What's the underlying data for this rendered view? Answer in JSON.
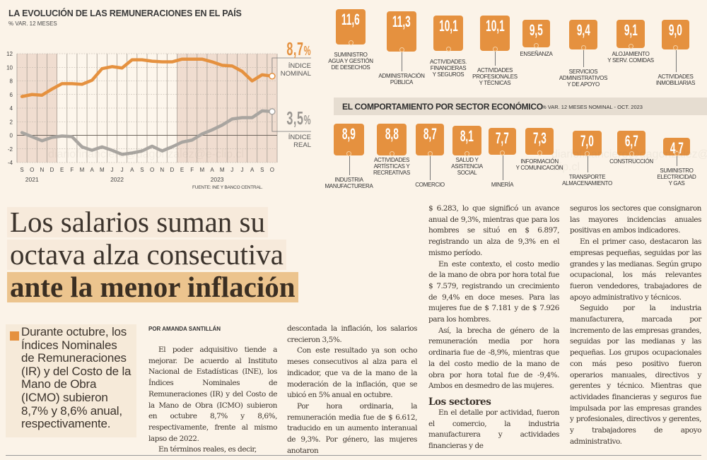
{
  "chart": {
    "title": "LA EVOLUCIÓN DE LAS REMUNERACIONES EN EL PAÍS",
    "subtitle": "% VAR. 12 MESES",
    "source": "FUENTE: INE Y BANCO CENTRAL.",
    "nominal_callout": {
      "value": "8,7",
      "unit": "%",
      "label_line1": "ÍNDICE",
      "label_line2": "NOMINAL"
    },
    "real_callout": {
      "value": "3,5",
      "unit": "%",
      "label_line1": "ÍNDICE",
      "label_line2": "REAL"
    },
    "watermark": "diariofinanciero@dagonzalez@e-clip.cl"
  },
  "chart_data": {
    "type": "line",
    "title": "LA EVOLUCIÓN DE LAS REMUNERACIONES EN EL PAÍS",
    "subtitle": "% VAR. 12 MESES",
    "xlabel": "",
    "ylabel": "% VAR. 12 MESES",
    "ylim": [
      -4,
      12
    ],
    "yticks": [
      12,
      10,
      8,
      6,
      4,
      2,
      0,
      -2,
      -4
    ],
    "grid": true,
    "x": [
      "S",
      "O",
      "N",
      "D",
      "E",
      "F",
      "M",
      "A",
      "M",
      "J",
      "J",
      "A",
      "S",
      "O",
      "N",
      "D",
      "E",
      "F",
      "M",
      "A",
      "M",
      "J",
      "J",
      "A",
      "S",
      "O"
    ],
    "year_labels": [
      {
        "label": "2021",
        "at": 1
      },
      {
        "label": "2022",
        "at": 9.5
      },
      {
        "label": "2023",
        "at": 19.5
      }
    ],
    "series": [
      {
        "name": "ÍNDICE NOMINAL",
        "color": "#e5913f",
        "values": [
          5.7,
          6.0,
          5.9,
          6.8,
          7.6,
          7.6,
          7.5,
          8.1,
          9.8,
          10.1,
          9.9,
          11.1,
          11.1,
          10.9,
          10.8,
          10.8,
          11.2,
          11.2,
          11.2,
          10.8,
          10.3,
          10.2,
          9.4,
          8.0,
          8.9,
          8.7
        ]
      },
      {
        "name": "ÍNDICE REAL",
        "color": "#a9a5a0",
        "values": [
          0.4,
          -0.2,
          -0.8,
          -0.3,
          -0.1,
          -0.2,
          -1.7,
          -2.2,
          -1.7,
          -2.2,
          -2.8,
          -2.6,
          -2.3,
          -1.6,
          -2.3,
          -1.7,
          -1.0,
          -0.7,
          0.2,
          0.8,
          1.5,
          2.4,
          2.6,
          2.6,
          3.6,
          3.5
        ]
      }
    ]
  },
  "sectors_top": [
    {
      "value": "11,6",
      "label": [
        "SUMINISTRO",
        "AGUA Y GESTIÓN",
        "DE DESECHOS"
      ]
    },
    {
      "value": "11,3",
      "label": [
        "ADMINISTRACIÓN",
        "PÚBLICA"
      ]
    },
    {
      "value": "10,1",
      "label": [
        "ACTIVIDADES.",
        "FINANCIERAS",
        "Y SEGUROS"
      ]
    },
    {
      "value": "10,1",
      "label": [
        "ACTIVIDADES",
        "PROFESIONALES",
        "Y TÉCNICAS"
      ]
    },
    {
      "value": "9,5",
      "label": [
        "ENSEÑANZA"
      ]
    },
    {
      "value": "9,4",
      "label": [
        "SERVICIOS",
        "ADMINISTRATIVOS",
        "Y DE APOYO"
      ]
    },
    {
      "value": "9,1",
      "label": [
        "ALOJAMIENTO",
        "Y SERV. COMIDAS"
      ]
    },
    {
      "value": "9,0",
      "label": [
        "ACTIVIDADES",
        "INMOBILIARIAS"
      ]
    }
  ],
  "sector_header": {
    "title": "EL COMPORTAMIENTO POR SECTOR ECONÓMICO",
    "subtitle": "% VAR. 12 MESES NOMINAL - OCT. 2023"
  },
  "sectors_bottom": [
    {
      "value": "8,9",
      "label": [
        "INDUSTRIA",
        "MANUFACTURERA"
      ]
    },
    {
      "value": "8,8",
      "label": [
        "ACTIVIDADES",
        "ARTÍSTICAS Y",
        "RECREATIVAS"
      ]
    },
    {
      "value": "8,7",
      "label": [
        "COMERCIO"
      ]
    },
    {
      "value": "8,1",
      "label": [
        "SALUD Y",
        "ASISTENCIA",
        "SOCIAL"
      ]
    },
    {
      "value": "7,7",
      "label": [
        "MINERÍA"
      ]
    },
    {
      "value": "7,3",
      "label": [
        "INFORMACIÓN",
        "Y COMUNICACIÓN"
      ]
    },
    {
      "value": "7,0",
      "label": [
        "TRANSPORTE",
        "ALMACENAMIENTO"
      ]
    },
    {
      "value": "6,7",
      "label": [
        "CONSTRUCCIÓN"
      ]
    },
    {
      "value": "4,7",
      "label": [
        "SUMINISTRO",
        "ELECTRICIDAD",
        "Y GAS"
      ]
    }
  ],
  "watermark2": "diariofinanciero@dagonzalez@e-clip.cl",
  "article": {
    "headline_line1": "Los salarios suman su",
    "headline_line2": "octava alza consecutiva",
    "headline_line3": "ante la menor inflación",
    "lead": "Durante octubre, los Índices Nominales de Remuneraciones (IR) y del Costo de la Mano de Obra (ICMO) subieron 8,7% y 8,6% anual, respectivamente.",
    "byline": "POR AMANDA SANTILLÁN",
    "col1": [
      "El poder adquisitivo tiende a mejorar. De acuerdo al Instituto Nacional de Estadísticas (INE), los Índices Nominales de Remuneraciones (IR) y del Costo de la Mano de Obra (ICMO) subieron en octubre 8,7% y 8,6%, respectivamente, frente al mismo lapso de 2022.",
      "En términos reales, es decir,"
    ],
    "col2": [
      "descontada la inflación, los salarios crecieron 3,5%.",
      "Con este resultado ya son ocho meses consecutivos al alza para el indicador, que va de la mano de la moderación de la inflación, que se ubicó en 5% anual en octubre.",
      "Por hora ordinaria, la remuneración media fue de $ 6.612, traducido en un aumento interanual de 9,3%. Por género, las mujeres anotaron"
    ],
    "col3": [
      "$ 6.283, lo que significó un avance anual de 9,3%, mientras que para los hombres se situó en $ 6.897, registrando un alza de 9,3% en el mismo período.",
      "En este contexto, el costo medio de la mano de obra por hora total fue $ 7.579, registrando un crecimiento de 9,4% en doce meses. Para las mujeres fue de $ 7.181 y de $ 7.926 para los hombres.",
      "Así, la brecha de género de la remuneración media por hora ordinaria fue de -8,9%, mientras que la del costo medio de la mano de obra por hora total fue de -9,4%. Ambos en desmedro de las mujeres."
    ],
    "subhead": "Los sectores",
    "col3b": [
      "En el detalle por actividad, fueron el comercio, la industria manufacturera y actividades financieras y de"
    ],
    "col4": [
      "seguros los sectores que consignaron las mayores incidencias anuales positivas en ambos indicadores.",
      "En el primer caso, destacaron las empresas pequeñas, seguidas por las grandes y las medianas. Según grupo ocupacional, los más relevantes fueron vendedores, trabajadores de apoyo administrativo y técnicos.",
      "Seguido por la industria manufacturera, marcada por incremento de las empresas grandes, seguidas por las medianas y las pequeñas. Los grupos ocupacionales con más peso positivo fueron operarios manuales, directivos y gerentes y técnico. Mientras que actividades financieras y seguros fue impulsada por las empresas grandes y profesionales, directivos y gerentes, y trabajadores de apoyo administrativo."
    ]
  },
  "colors": {
    "accent": "#e5913f",
    "real": "#a9a5a0",
    "background": "#fbf3e8",
    "highlight": "#ecc48e"
  }
}
